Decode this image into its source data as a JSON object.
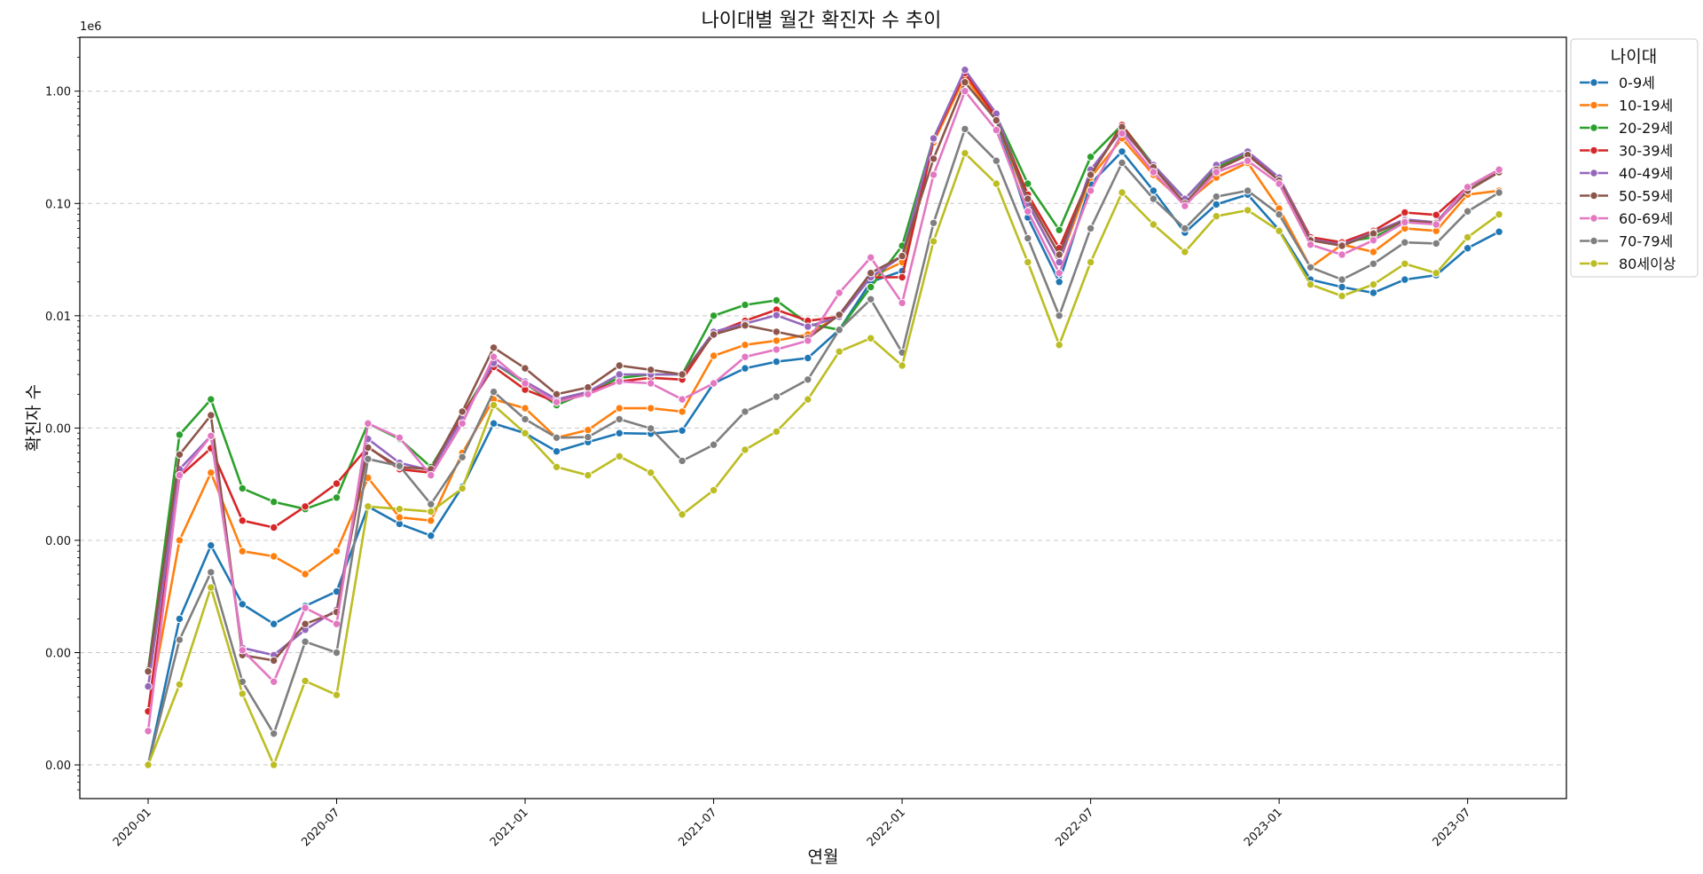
{
  "chart_data": {
    "type": "line",
    "title": "나이대별 월간 확진자 수 추이",
    "xlabel": "연월",
    "ylabel": "확진자 수",
    "yscale": "log",
    "y_offset_text": "1e6",
    "ylim_log10": [
      -6.3,
      0.48
    ],
    "grid": true,
    "legend_title": "나이대",
    "legend_position": "outside-top-right",
    "y_ticks": [
      {
        "exp": -6,
        "label": "0.00"
      },
      {
        "exp": -5,
        "label": "0.00"
      },
      {
        "exp": -4,
        "label": "0.00"
      },
      {
        "exp": -3,
        "label": "0.00"
      },
      {
        "exp": -2,
        "label": "0.01"
      },
      {
        "exp": -1,
        "label": "0.10"
      },
      {
        "exp": 0,
        "label": "1.00"
      }
    ],
    "x_ticks": [
      {
        "index": 0,
        "label": "2020-01"
      },
      {
        "index": 6,
        "label": "2020-07"
      },
      {
        "index": 12,
        "label": "2021-01"
      },
      {
        "index": 18,
        "label": "2021-07"
      },
      {
        "index": 24,
        "label": "2022-01"
      },
      {
        "index": 30,
        "label": "2022-07"
      },
      {
        "index": 36,
        "label": "2023-01"
      },
      {
        "index": 42,
        "label": "2023-07"
      }
    ],
    "x": [
      "2020-01",
      "2020-02",
      "2020-03",
      "2020-04",
      "2020-05",
      "2020-06",
      "2020-07",
      "2020-08",
      "2020-09",
      "2020-10",
      "2020-11",
      "2020-12",
      "2021-01",
      "2021-02",
      "2021-03",
      "2021-04",
      "2021-05",
      "2021-06",
      "2021-07",
      "2021-08",
      "2021-09",
      "2021-10",
      "2021-11",
      "2021-12",
      "2022-01",
      "2022-02",
      "2022-03",
      "2022-04",
      "2022-05",
      "2022-06",
      "2022-07",
      "2022-08",
      "2022-09",
      "2022-10",
      "2022-11",
      "2022-12",
      "2023-01",
      "2023-02",
      "2023-03",
      "2023-04",
      "2023-05",
      "2023-06",
      "2023-07",
      "2023-08"
    ],
    "series": [
      {
        "name": "0-9세",
        "color": "#1f77b4",
        "values": [
          1e-06,
          2e-05,
          9e-05,
          2.7e-05,
          1.8e-05,
          2.6e-05,
          3.5e-05,
          0.0002,
          0.00014,
          0.00011,
          0.0003,
          0.0011,
          0.0009,
          0.00062,
          0.00075,
          0.0009,
          0.00089,
          0.00095,
          0.0025,
          0.0034,
          0.0039,
          0.0042,
          0.0075,
          0.02,
          0.025,
          0.35,
          1.4,
          0.55,
          0.075,
          0.02,
          0.15,
          0.29,
          0.13,
          0.055,
          0.098,
          0.12,
          0.058,
          0.021,
          0.018,
          0.016,
          0.021,
          0.023,
          0.04,
          0.056
        ]
      },
      {
        "name": "10-19세",
        "color": "#ff7f0e",
        "values": [
          3e-06,
          0.0001,
          0.0004,
          8e-05,
          7.2e-05,
          5e-05,
          8e-05,
          0.00036,
          0.00016,
          0.00015,
          0.0006,
          0.0018,
          0.0015,
          0.00082,
          0.00096,
          0.0015,
          0.0015,
          0.0014,
          0.0044,
          0.0055,
          0.006,
          0.0068,
          0.01,
          0.022,
          0.03,
          0.35,
          1.35,
          0.55,
          0.1,
          0.03,
          0.17,
          0.38,
          0.18,
          0.1,
          0.17,
          0.23,
          0.09,
          0.027,
          0.043,
          0.037,
          0.06,
          0.057,
          0.12,
          0.13
        ]
      },
      {
        "name": "20-29세",
        "color": "#2ca02c",
        "values": [
          7e-06,
          0.00087,
          0.0018,
          0.00029,
          0.00022,
          0.00019,
          0.00024,
          0.0011,
          0.0008,
          0.00045,
          0.0013,
          0.0038,
          0.0025,
          0.0016,
          0.0021,
          0.0028,
          0.003,
          0.003,
          0.01,
          0.0125,
          0.0137,
          0.0085,
          0.0075,
          0.018,
          0.042,
          0.38,
          1.5,
          0.6,
          0.15,
          0.058,
          0.26,
          0.5,
          0.22,
          0.11,
          0.21,
          0.28,
          0.17,
          0.05,
          0.045,
          0.05,
          0.068,
          0.066,
          0.14,
          0.19
        ]
      },
      {
        "name": "30-39세",
        "color": "#d62728",
        "values": [
          3e-06,
          0.00037,
          0.00066,
          0.00015,
          0.00013,
          0.0002,
          0.00032,
          0.00068,
          0.00043,
          0.0004,
          0.0013,
          0.0035,
          0.0022,
          0.0017,
          0.0021,
          0.0026,
          0.0028,
          0.0027,
          0.007,
          0.009,
          0.0113,
          0.009,
          0.0098,
          0.022,
          0.022,
          0.37,
          1.45,
          0.58,
          0.12,
          0.04,
          0.18,
          0.5,
          0.21,
          0.1,
          0.2,
          0.27,
          0.17,
          0.05,
          0.045,
          0.057,
          0.083,
          0.079,
          0.14,
          0.2
        ]
      },
      {
        "name": "40-49세",
        "color": "#9467bd",
        "values": [
          5e-06,
          0.00043,
          0.00085,
          1.1e-05,
          9.5e-06,
          1.6e-05,
          2.4e-05,
          0.0008,
          0.00049,
          0.00042,
          0.0012,
          0.0038,
          0.0026,
          0.0018,
          0.0021,
          0.003,
          0.003,
          0.003,
          0.0072,
          0.0085,
          0.0101,
          0.008,
          0.0098,
          0.022,
          0.034,
          0.38,
          1.55,
          0.63,
          0.1,
          0.03,
          0.2,
          0.45,
          0.22,
          0.11,
          0.22,
          0.29,
          0.17,
          0.048,
          0.043,
          0.055,
          0.072,
          0.068,
          0.14,
          0.2
        ]
      },
      {
        "name": "50-59세",
        "color": "#8c564b",
        "values": [
          6.8e-06,
          0.00058,
          0.0013,
          9.5e-06,
          8.5e-06,
          1.8e-05,
          2.3e-05,
          0.00067,
          0.00045,
          0.00043,
          0.0014,
          0.0052,
          0.0034,
          0.002,
          0.0023,
          0.0036,
          0.0033,
          0.003,
          0.0068,
          0.0082,
          0.0072,
          0.0063,
          0.0102,
          0.024,
          0.034,
          0.25,
          1.2,
          0.55,
          0.11,
          0.035,
          0.18,
          0.48,
          0.21,
          0.1,
          0.2,
          0.27,
          0.16,
          0.047,
          0.042,
          0.054,
          0.07,
          0.067,
          0.13,
          0.19
        ]
      },
      {
        "name": "60-69세",
        "color": "#e377c2",
        "values": [
          2e-06,
          0.00038,
          0.00085,
          1.05e-05,
          5.5e-06,
          2.5e-05,
          1.8e-05,
          0.0011,
          0.00082,
          0.00038,
          0.0011,
          0.0043,
          0.0025,
          0.0017,
          0.002,
          0.0026,
          0.0025,
          0.0018,
          0.0025,
          0.0043,
          0.005,
          0.006,
          0.016,
          0.033,
          0.013,
          0.18,
          1.0,
          0.45,
          0.085,
          0.024,
          0.13,
          0.42,
          0.19,
          0.095,
          0.19,
          0.24,
          0.15,
          0.043,
          0.035,
          0.047,
          0.068,
          0.065,
          0.14,
          0.2
        ]
      },
      {
        "name": "70-79세",
        "color": "#7f7f7f",
        "values": [
          1e-06,
          1.3e-05,
          5.2e-05,
          5.5e-06,
          1.9e-06,
          1.25e-05,
          1e-05,
          0.00053,
          0.00046,
          0.00021,
          0.00055,
          0.0021,
          0.0012,
          0.00082,
          0.00083,
          0.0012,
          0.00099,
          0.00051,
          0.00071,
          0.0014,
          0.0019,
          0.0027,
          0.0075,
          0.014,
          0.0047,
          0.067,
          0.46,
          0.24,
          0.049,
          0.01,
          0.06,
          0.23,
          0.11,
          0.06,
          0.115,
          0.13,
          0.08,
          0.027,
          0.021,
          0.029,
          0.045,
          0.044,
          0.085,
          0.125
        ]
      },
      {
        "name": "80세이상",
        "color": "#bcbd22",
        "values": [
          1e-06,
          5.2e-06,
          3.8e-05,
          4.3e-06,
          1e-06,
          5.6e-06,
          4.2e-06,
          0.0002,
          0.00019,
          0.00018,
          0.00029,
          0.0016,
          0.0009,
          0.00045,
          0.00038,
          0.00056,
          0.0004,
          0.00017,
          0.00028,
          0.00064,
          0.00093,
          0.0018,
          0.0048,
          0.0063,
          0.0036,
          0.046,
          0.28,
          0.15,
          0.03,
          0.0055,
          0.03,
          0.125,
          0.065,
          0.037,
          0.077,
          0.087,
          0.057,
          0.019,
          0.015,
          0.019,
          0.029,
          0.024,
          0.05,
          0.08
        ]
      }
    ]
  }
}
